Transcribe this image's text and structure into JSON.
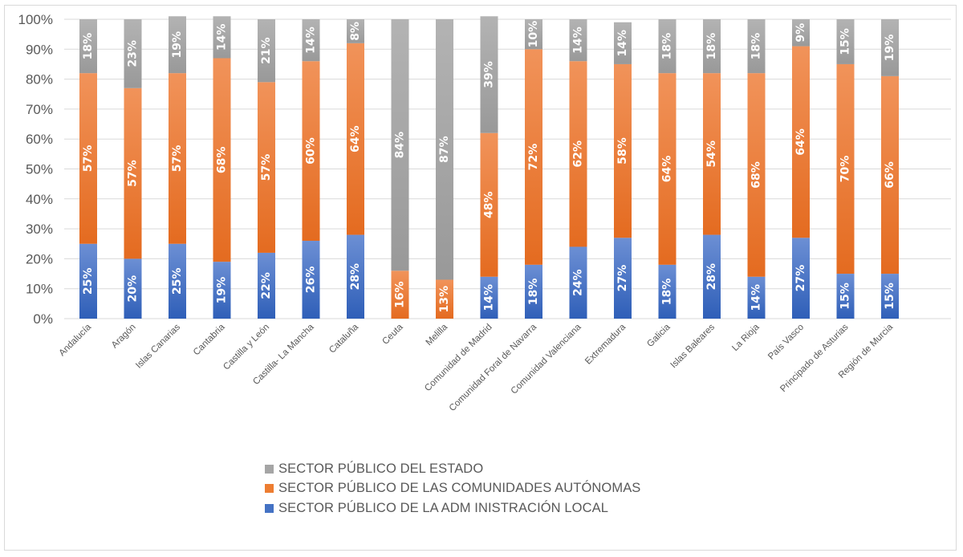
{
  "chart_data": {
    "type": "bar",
    "stacked": true,
    "percent_stacked": true,
    "title": "",
    "xlabel": "",
    "ylabel": "",
    "ylim": [
      0,
      100
    ],
    "y_ticks": [
      "0%",
      "10%",
      "20%",
      "30%",
      "40%",
      "50%",
      "60%",
      "70%",
      "80%",
      "90%",
      "100%"
    ],
    "grid": true,
    "legend_position": "bottom",
    "categories": [
      "Andalucía",
      "Aragón",
      "Islas Canarias",
      "Cantabria",
      "Castilla y León",
      "Castilla- La Mancha",
      "Cataluña",
      "Ceuta",
      "Melilla",
      "Comunidad de Madrid",
      "Comunidad Foral de Navarra",
      "Comunidad Valenciana",
      "Extremadura",
      "Galicia",
      "Islas Baleares",
      "La Rioja",
      "País Vasco",
      "Principado de Asturias",
      "Región de Murcia"
    ],
    "series": [
      {
        "name": "SECTOR PÚBLICO DE LA ADM INISTRACIÓN LOCAL",
        "color": "#4472c4",
        "values": [
          25,
          20,
          25,
          19,
          22,
          26,
          28,
          0,
          0,
          14,
          18,
          24,
          27,
          18,
          28,
          14,
          27,
          15,
          15
        ]
      },
      {
        "name": "SECTOR PÚBLICO DE LAS COMUNIDADES AUTÓNOMAS",
        "color": "#ed7d31",
        "values": [
          57,
          57,
          57,
          68,
          57,
          60,
          64,
          16,
          13,
          48,
          72,
          62,
          58,
          64,
          54,
          68,
          64,
          70,
          66
        ]
      },
      {
        "name": "SECTOR PÚBLICO DEL ESTADO",
        "color": "#a5a5a5",
        "values": [
          18,
          23,
          19,
          14,
          21,
          14,
          8,
          84,
          87,
          39,
          10,
          14,
          14,
          18,
          18,
          18,
          9,
          15,
          19
        ]
      }
    ],
    "legend_order": [
      "SECTOR PÚBLICO DEL ESTADO",
      "SECTOR PÚBLICO DE LAS COMUNIDADES AUTÓNOMAS",
      "SECTOR PÚBLICO DE LA ADM INISTRACIÓN LOCAL"
    ]
  },
  "legend": [
    {
      "label": "SECTOR PÚBLICO DEL ESTADO",
      "color": "#a5a5a5"
    },
    {
      "label": "SECTOR PÚBLICO DE LAS COMUNIDADES AUTÓNOMAS",
      "color": "#ed7d31"
    },
    {
      "label": "SECTOR PÚBLICO DE LA ADM INISTRACIÓN LOCAL",
      "color": "#4472c4"
    }
  ]
}
